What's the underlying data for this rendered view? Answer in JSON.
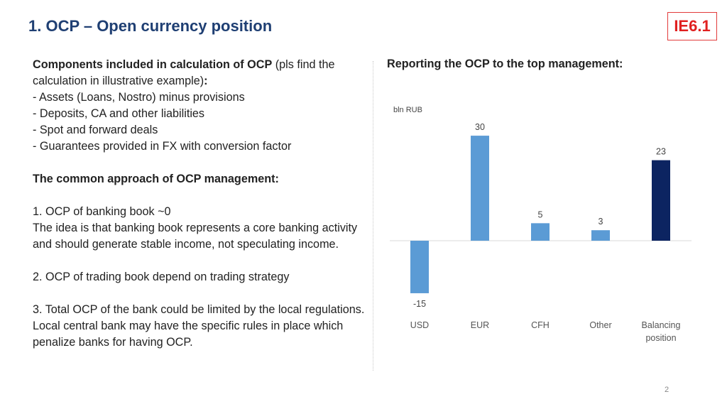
{
  "slide": {
    "title": "1. OCP – Open currency position",
    "badge": "IE6.1",
    "page_number": "2"
  },
  "left": {
    "components_heading": "Components included in calculation of OCP",
    "components_note": " (pls find the calculation in illustrative example)",
    "components_colon": ":",
    "components_items": [
      "- Assets (Loans, Nostro) minus provisions",
      "- Deposits, CA and other liabilities",
      "- Spot and forward deals",
      "- Guarantees provided in FX with conversion factor"
    ],
    "approach_heading": "The common approach of OCP management:",
    "point1_title": "1. OCP of banking book ~0",
    "point1_text": "The idea is that banking book represents a core banking activity and should generate stable income, not speculating income.",
    "point2": "2. OCP of trading book depend on trading strategy",
    "point3": "3. Total OCP of the bank could be limited by the local regulations. Local central bank may have the specific rules in place which penalize banks for having OCP."
  },
  "chart_heading": "Reporting the OCP to the top management:",
  "chart_data": {
    "type": "bar",
    "title": "",
    "ylabel": "bln RUB",
    "xlabel": "",
    "categories": [
      "USD",
      "EUR",
      "CFH",
      "Other",
      "Balancing\nposition"
    ],
    "values": [
      -15,
      30,
      5,
      3,
      23
    ],
    "data_labels": [
      "-15",
      "30",
      "5",
      "3",
      "23"
    ],
    "colors": [
      "#5b9bd5",
      "#5b9bd5",
      "#5b9bd5",
      "#5b9bd5",
      "#0c2461"
    ],
    "ylim": [
      -15,
      30
    ],
    "grid": false,
    "legend": "none"
  }
}
